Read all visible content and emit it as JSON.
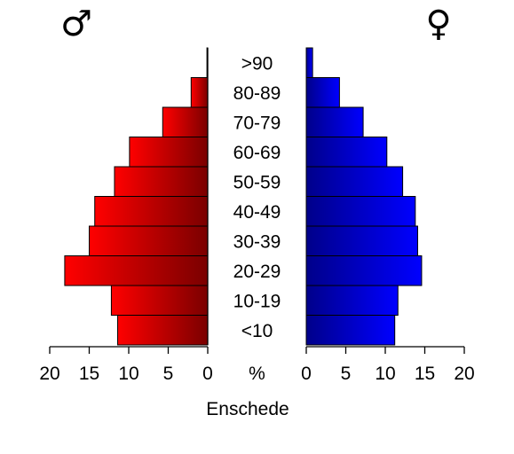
{
  "chart_data": {
    "type": "bar",
    "orientation": "horizontal",
    "layout": "population-pyramid",
    "caption": "Enschede",
    "categories": [
      "<10",
      "10-19",
      "20-29",
      "30-39",
      "40-49",
      "50-59",
      "60-69",
      "70-79",
      "80-89",
      ">90"
    ],
    "center_label": "%",
    "series": [
      {
        "name": "♂",
        "side": "left",
        "color_dark": "#7a0000",
        "color_light": "#ff0000",
        "values": [
          11.4,
          12.2,
          18.1,
          15.0,
          14.3,
          11.8,
          9.9,
          5.7,
          2.1,
          0.1
        ]
      },
      {
        "name": "♀",
        "side": "right",
        "color_dark": "#00008a",
        "color_light": "#0000ff",
        "values": [
          11.2,
          11.6,
          14.6,
          14.1,
          13.8,
          12.2,
          10.2,
          7.2,
          4.2,
          0.8
        ]
      }
    ],
    "axis": {
      "range": [
        0,
        20
      ],
      "ticks": [
        "0",
        "5",
        "10",
        "15",
        "20"
      ],
      "left_ticks": [
        "20",
        "15",
        "10",
        "5",
        "0"
      ]
    },
    "grid": false,
    "legend": "none"
  }
}
